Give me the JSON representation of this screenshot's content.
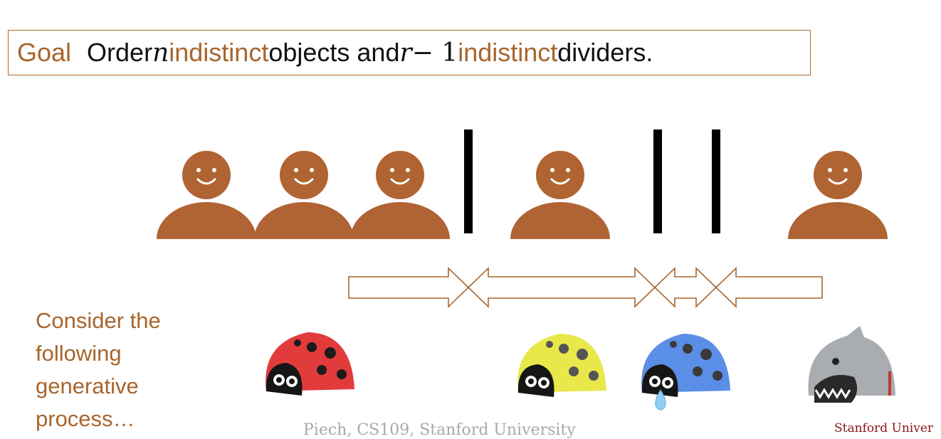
{
  "goal": {
    "label": "Goal",
    "t1": "Order ",
    "n": "n",
    "t2": " ",
    "indistinct1": "indistinct",
    "t3": " objects and ",
    "r": "r",
    "t4": " − 1 ",
    "indistinct2": "indistinct",
    "t5": " dividers."
  },
  "arrangement": [
    "object",
    "object",
    "object",
    "divider",
    "object",
    "divider",
    "divider",
    "object"
  ],
  "helmets": [
    "red-ladybug-helmet",
    "yellow-ladybug-helmet",
    "blue-ladybug-helmet",
    "shark-helmet"
  ],
  "side_text": [
    "Consider the",
    "following",
    "generative",
    "process…"
  ],
  "footer": {
    "center": "Piech, CS109, Stanford University",
    "right": "Stanford Univer"
  },
  "colors": {
    "accent": "#a8652c",
    "person": "#b06433",
    "divider": "#000000",
    "footer_red": "#8c1515"
  }
}
